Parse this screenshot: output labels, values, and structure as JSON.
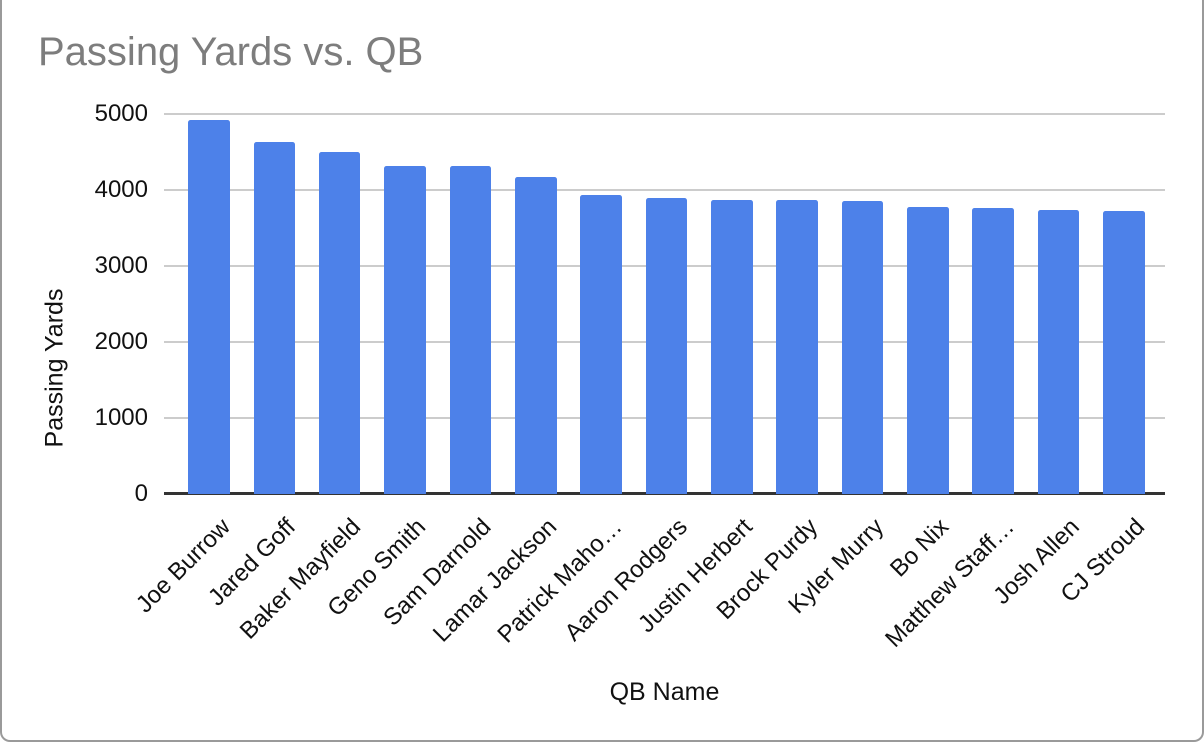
{
  "frame": {
    "background": "#ffffff",
    "border_color": "#9a9a9a"
  },
  "chart_data": {
    "type": "bar",
    "title": "Passing Yards vs. QB",
    "xlabel": "QB Name",
    "ylabel": "Passing Yards",
    "categories": [
      "Joe Burrow",
      "Jared Goff",
      "Baker Mayfield",
      "Geno Smith",
      "Sam Darnold",
      "Lamar Jackson",
      "Patrick Maho…",
      "Aaron Rodgers",
      "Justin Herbert",
      "Brock Purdy",
      "Kyler Murry",
      "Bo Nix",
      "Matthew Staff…",
      "Josh Allen",
      "CJ Stroud"
    ],
    "values": [
      4918,
      4629,
      4500,
      4320,
      4319,
      4172,
      3928,
      3897,
      3870,
      3864,
      3851,
      3775,
      3762,
      3731,
      3727
    ],
    "ylim": [
      0,
      5000
    ],
    "yticks": [
      0,
      1000,
      2000,
      3000,
      4000,
      5000
    ],
    "grid": true,
    "legend_position": "none",
    "x_label_rotation_deg": 45,
    "bar_color": "#4d81e9",
    "title_color": "#7d7d7d",
    "axis_text_color": "#111111",
    "gridline_color": "#cccccc",
    "axis_line_color": "#333333"
  }
}
